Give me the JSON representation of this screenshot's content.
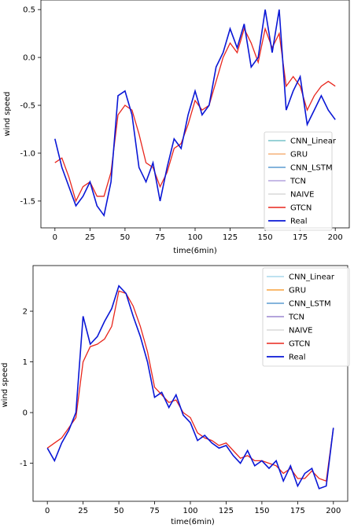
{
  "chart_data": [
    {
      "type": "line",
      "title": "",
      "xlabel": "time(6min)",
      "ylabel": "wind speed",
      "xlim": [
        -10,
        210
      ],
      "ylim": [
        -1.78,
        0.6
      ],
      "xticks": [
        "0",
        "25",
        "50",
        "75",
        "100",
        "125",
        "150",
        "175",
        "200"
      ],
      "xtick_values": [
        0,
        25,
        50,
        75,
        100,
        125,
        150,
        175,
        200
      ],
      "yticks": [
        "0.5",
        "0.0",
        "-0.5",
        "-1.0",
        "-1.5"
      ],
      "ytick_values": [
        0.5,
        0.0,
        -0.5,
        -1.0,
        -1.5
      ],
      "legend_position": "lower-right",
      "series": [
        {
          "name": "CNN_Linear",
          "color": "#77c4c9"
        },
        {
          "name": "GRU",
          "color": "#f5b27a"
        },
        {
          "name": "CNN_LSTM",
          "color": "#5b9bd0"
        },
        {
          "name": "TCN",
          "color": "#b3a4de"
        },
        {
          "name": "NAIVE",
          "color": "#d8d8d8"
        },
        {
          "name": "GTCN",
          "color": "#e8261d"
        },
        {
          "name": "Real",
          "color": "#0a17d6",
          "x": [
            0,
            5,
            10,
            15,
            20,
            25,
            30,
            35,
            40,
            45,
            50,
            55,
            60,
            65,
            70,
            75,
            80,
            85,
            90,
            95,
            100,
            105,
            110,
            115,
            120,
            125,
            130,
            135,
            140,
            145,
            150,
            155,
            160,
            165,
            170,
            175,
            180,
            185,
            190,
            195,
            200
          ],
          "values": [
            -0.85,
            -1.15,
            -1.35,
            -1.55,
            -1.45,
            -1.3,
            -1.55,
            -1.65,
            -1.3,
            -0.4,
            -0.35,
            -0.6,
            -1.15,
            -1.3,
            -1.1,
            -1.5,
            -1.15,
            -0.85,
            -0.95,
            -0.6,
            -0.35,
            -0.6,
            -0.5,
            -0.1,
            0.05,
            0.3,
            0.1,
            0.35,
            -0.1,
            0.0,
            0.5,
            0.05,
            0.5,
            -0.55,
            -0.35,
            -0.2,
            -0.7,
            -0.55,
            -0.4,
            -0.55,
            -0.65
          ]
        },
        {
          "name": "GTCN",
          "color": "#e8261d",
          "x": [
            0,
            5,
            10,
            15,
            20,
            25,
            30,
            35,
            40,
            45,
            50,
            55,
            60,
            65,
            70,
            75,
            80,
            85,
            90,
            95,
            100,
            105,
            110,
            115,
            120,
            125,
            130,
            135,
            140,
            145,
            150,
            155,
            160,
            165,
            170,
            175,
            180,
            185,
            190,
            195,
            200
          ],
          "values": [
            -1.1,
            -1.05,
            -1.25,
            -1.5,
            -1.35,
            -1.3,
            -1.45,
            -1.45,
            -1.2,
            -0.6,
            -0.5,
            -0.55,
            -0.8,
            -1.1,
            -1.15,
            -1.35,
            -1.2,
            -0.95,
            -0.9,
            -0.7,
            -0.45,
            -0.55,
            -0.5,
            -0.25,
            0.0,
            0.15,
            0.05,
            0.3,
            0.15,
            -0.05,
            0.3,
            0.1,
            0.25,
            -0.3,
            -0.2,
            -0.3,
            -0.55,
            -0.4,
            -0.3,
            -0.25,
            -0.3
          ]
        }
      ]
    },
    {
      "type": "line",
      "title": "",
      "xlabel": "time(6min)",
      "ylabel": "wind speed",
      "xlim": [
        -10,
        210
      ],
      "ylim": [
        -1.75,
        2.9
      ],
      "xticks": [
        "0",
        "25",
        "50",
        "75",
        "100",
        "125",
        "150",
        "175",
        "200"
      ],
      "xtick_values": [
        0,
        25,
        50,
        75,
        100,
        125,
        150,
        175,
        200
      ],
      "yticks": [
        "2",
        "1",
        "0",
        "-1"
      ],
      "ytick_values": [
        2,
        1,
        0,
        -1
      ],
      "legend_position": "top-right",
      "series": [
        {
          "name": "CNN_Linear",
          "color": "#a9d9ec"
        },
        {
          "name": "GRU",
          "color": "#f7a23d"
        },
        {
          "name": "CNN_LSTM",
          "color": "#5b9bd0"
        },
        {
          "name": "TCN",
          "color": "#9b86d0"
        },
        {
          "name": "NAIVE",
          "color": "#d8d8d8"
        },
        {
          "name": "GTCN",
          "color": "#e8261d"
        },
        {
          "name": "Real",
          "color": "#0a17d6",
          "x": [
            0,
            5,
            10,
            15,
            20,
            25,
            30,
            35,
            40,
            45,
            50,
            55,
            60,
            65,
            70,
            75,
            80,
            85,
            90,
            95,
            100,
            105,
            110,
            115,
            120,
            125,
            130,
            135,
            140,
            145,
            150,
            155,
            160,
            165,
            170,
            175,
            180,
            185,
            190,
            195,
            200
          ],
          "values": [
            -0.7,
            -0.95,
            -0.6,
            -0.35,
            0.0,
            1.9,
            1.35,
            1.5,
            1.8,
            2.05,
            2.5,
            2.35,
            1.9,
            1.5,
            1.0,
            0.3,
            0.4,
            0.1,
            0.35,
            -0.05,
            -0.2,
            -0.55,
            -0.45,
            -0.6,
            -0.7,
            -0.65,
            -0.85,
            -1.0,
            -0.75,
            -1.05,
            -0.95,
            -1.1,
            -0.95,
            -1.35,
            -1.05,
            -1.45,
            -1.2,
            -1.1,
            -1.5,
            -1.45,
            -0.3
          ]
        },
        {
          "name": "GTCN",
          "color": "#e8261d",
          "x": [
            0,
            5,
            10,
            15,
            20,
            25,
            30,
            35,
            40,
            45,
            50,
            55,
            60,
            65,
            70,
            75,
            80,
            85,
            90,
            95,
            100,
            105,
            110,
            115,
            120,
            125,
            130,
            135,
            140,
            145,
            150,
            155,
            160,
            165,
            170,
            175,
            180,
            185,
            190,
            195,
            200
          ],
          "values": [
            -0.7,
            -0.6,
            -0.5,
            -0.3,
            -0.1,
            1.0,
            1.3,
            1.35,
            1.45,
            1.7,
            2.4,
            2.35,
            2.1,
            1.7,
            1.2,
            0.5,
            0.35,
            0.2,
            0.25,
            0.0,
            -0.1,
            -0.4,
            -0.5,
            -0.55,
            -0.65,
            -0.6,
            -0.75,
            -0.9,
            -0.85,
            -0.95,
            -0.95,
            -1.0,
            -1.05,
            -1.2,
            -1.1,
            -1.3,
            -1.3,
            -1.15,
            -1.3,
            -1.35,
            -0.3
          ]
        }
      ]
    }
  ]
}
